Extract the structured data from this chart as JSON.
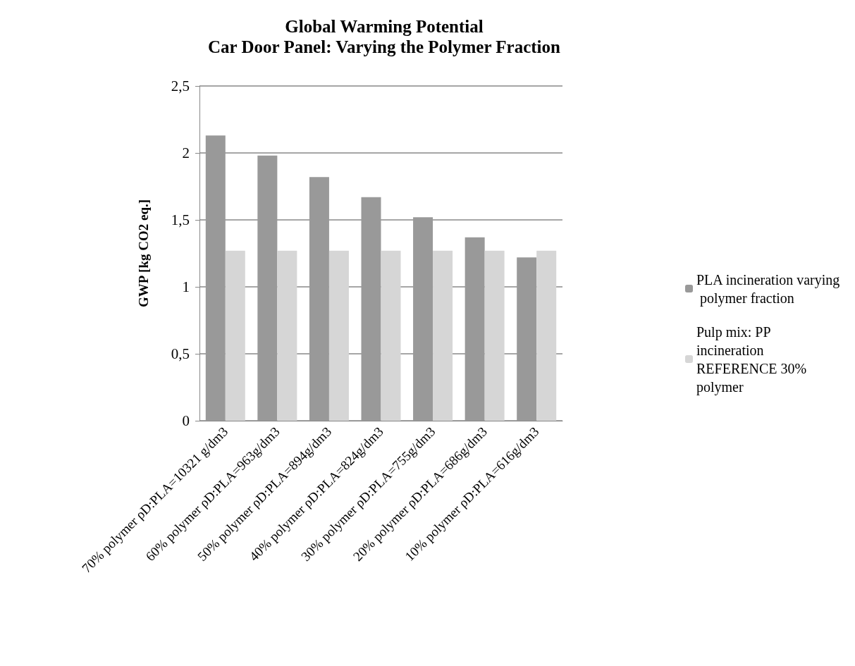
{
  "chart_data": {
    "type": "bar",
    "title": "Global Warming Potential",
    "subtitle": "Car Door Panel: Varying the Polymer Fraction",
    "ylabel": "GWP [kg CO2 eq.]",
    "categories": [
      "70% polymer ρD:PLA=10321 g/dm3",
      "60% polymer ρD:PLA=963g/dm3",
      "50% polymer ρD:PLA=894g/dm3",
      "40% polymer ρD:PLA=824g/dm3",
      "30% polymer ρD:PLA=755g/dm3",
      "20% polymer ρD:PLA=686g/dm3",
      "10% polymer ρD:PLA=616g/dm3"
    ],
    "series": [
      {
        "name": "PLA incineration varying polymer fraction",
        "color": "#999999",
        "values": [
          2.13,
          1.98,
          1.82,
          1.67,
          1.52,
          1.37,
          1.22
        ]
      },
      {
        "name": "Pulp mix: PP incineration REFERENCE 30% polymer",
        "color": "#d6d6d6",
        "values": [
          1.27,
          1.27,
          1.27,
          1.27,
          1.27,
          1.27,
          1.27
        ]
      }
    ],
    "ylim": [
      0,
      2.5
    ],
    "yticks": [
      0,
      {
        "value": 0.5,
        "label": "0,5"
      },
      1,
      {
        "value": 1.5,
        "label": "1,5"
      },
      2,
      {
        "value": 2.5,
        "label": "2,5"
      }
    ],
    "grid": "y",
    "legend": "right"
  }
}
